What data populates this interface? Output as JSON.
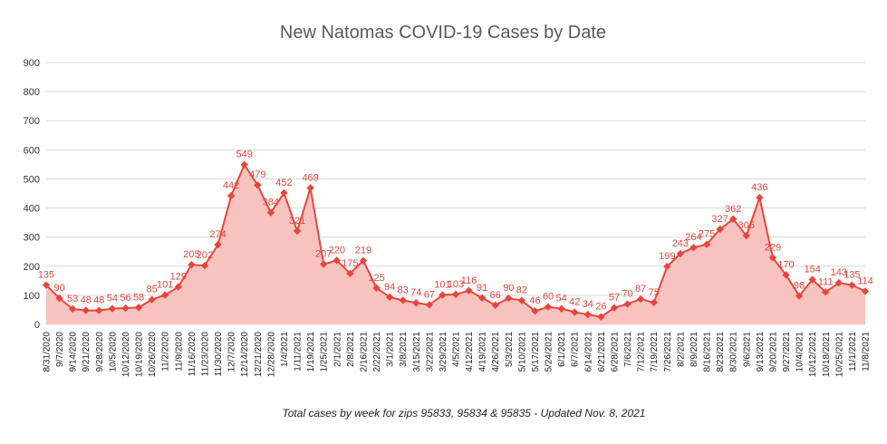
{
  "chart_data": {
    "type": "area",
    "title": "New Natomas COVID-19 Cases by Date",
    "subtitle": "Total cases by week for zips 95833, 95834 & 95835 - Updated Nov. 8, 2021",
    "ylim": [
      0,
      900
    ],
    "yticks": [
      0,
      100,
      200,
      300,
      400,
      500,
      600,
      700,
      800,
      900
    ],
    "grid": true,
    "legend": "none",
    "colors": {
      "line": "#e8463c",
      "fill": "#f8c3bf",
      "marker": "#e8463c",
      "label": "#e8463c"
    },
    "categories": [
      "8/31/2020",
      "9/7/2020",
      "9/14/2020",
      "9/21/2020",
      "9/28/2020",
      "10/5/2020",
      "10/12/2020",
      "10/19/2020",
      "10/26/2020",
      "11/2/2020",
      "11/9/2020",
      "11/16/2020",
      "11/23/2020",
      "11/30/2020",
      "12/7/2020",
      "12/14/2020",
      "12/21/2020",
      "12/28/2020",
      "1/4/2021",
      "1/11/2021",
      "1/19/2021",
      "1/25/2021",
      "2/1/2021",
      "2/8/2021",
      "2/16/2021",
      "2/22/2021",
      "3/1/2021",
      "3/8/2021",
      "3/15/2021",
      "3/22/2021",
      "3/29/2021",
      "4/5/2021",
      "4/12/2021",
      "4/19/2021",
      "4/26/2021",
      "5/3/2021",
      "5/10/2021",
      "5/17/2021",
      "5/24/2021",
      "6/1/2021",
      "6/7/2021",
      "6/14/2021",
      "6/21/2021",
      "6/28/2021",
      "7/6/2021",
      "7/12/2021",
      "7/19/2021",
      "7/26/2021",
      "8/2/2021",
      "8/9/2021",
      "8/16/2021",
      "8/23/2021",
      "8/30/2021",
      "9/6/2021",
      "9/13/2021",
      "9/20/2021",
      "9/27/2021",
      "10/4/2021",
      "10/12/2021",
      "10/18/2021",
      "10/25/2021",
      "11/1/2021",
      "11/8/2021"
    ],
    "values": [
      135,
      90,
      53,
      48,
      48,
      54,
      56,
      58,
      85,
      101,
      129,
      205,
      202,
      274,
      442,
      549,
      479,
      384,
      452,
      321,
      469,
      207,
      220,
      175,
      219,
      125,
      94,
      83,
      74,
      67,
      101,
      103,
      116,
      91,
      66,
      90,
      82,
      46,
      60,
      54,
      42,
      34,
      26,
      57,
      70,
      87,
      75,
      199,
      243,
      264,
      275,
      327,
      362,
      305,
      436,
      229,
      170,
      98,
      154,
      111,
      143,
      135,
      114
    ],
    "labels": [
      "135",
      "90",
      "53",
      "48",
      "48",
      "54",
      "56",
      "58",
      "85",
      "101",
      "129",
      "205",
      "202",
      "274",
      "442",
      "549",
      "479",
      "384",
      "452",
      "321",
      "469",
      "207",
      "220",
      "175",
      "219",
      "125",
      "94",
      "83",
      "74",
      "67",
      "101",
      "103",
      "116",
      "91",
      "66",
      "90",
      "82",
      "46",
      "60",
      "54",
      "42",
      "34",
      "26",
      "57",
      "70",
      "87",
      "75",
      "199",
      "243",
      "264",
      "275",
      "327",
      "362",
      "305",
      "436",
      "229",
      "170",
      "98",
      "154",
      "111",
      "143",
      "135",
      "114"
    ]
  }
}
